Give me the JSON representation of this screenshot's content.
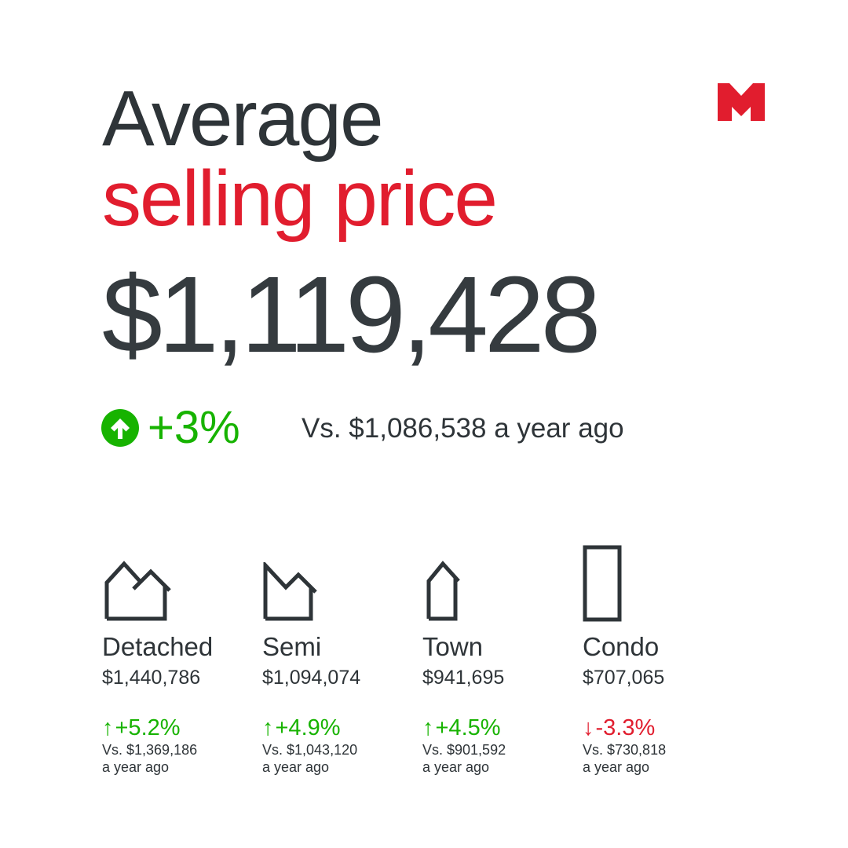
{
  "colors": {
    "accent_red": "#e11d2e",
    "positive_green": "#17b300",
    "negative_red": "#e11d2e",
    "text_dark": "#333a3f"
  },
  "header": {
    "title_line1": "Average",
    "title_line2": "selling price",
    "logo_icon": "m-logo"
  },
  "summary": {
    "price": "$1,119,428",
    "change": "+3%",
    "change_icon": "arrow-up-circle-icon",
    "comparison": "Vs. $1,086,538 a year ago"
  },
  "categories": [
    {
      "icon": "detached-house-icon",
      "name": "Detached",
      "price": "$1,440,786",
      "arrow": "↑",
      "change": "+5.2%",
      "vs_line1": "Vs. $1,369,186",
      "vs_line2": "a year ago",
      "direction": "up"
    },
    {
      "icon": "semi-house-icon",
      "name": "Semi",
      "price": "$1,094,074",
      "arrow": "↑",
      "change": "+4.9%",
      "vs_line1": "Vs. $1,043,120",
      "vs_line2": "a year ago",
      "direction": "up"
    },
    {
      "icon": "town-house-icon",
      "name": "Town",
      "price": "$941,695",
      "arrow": "↑",
      "change": "+4.5%",
      "vs_line1": "Vs. $901,592",
      "vs_line2": "a year ago",
      "direction": "up"
    },
    {
      "icon": "condo-building-icon",
      "name": "Condo",
      "price": "$707,065",
      "arrow": "↓",
      "change": "-3.3%",
      "vs_line1": "Vs. $730,818",
      "vs_line2": "a year ago",
      "direction": "down"
    }
  ]
}
